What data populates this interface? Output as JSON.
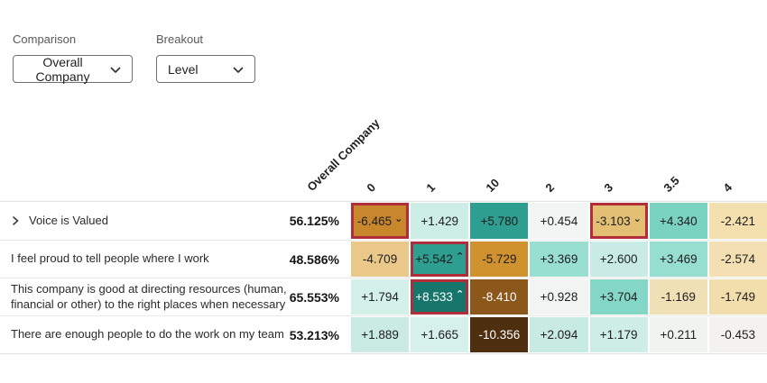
{
  "colors": {
    "highlight_border": "#b22d3a",
    "text_dark": "#1e1e1e",
    "text_light": "#ffffff"
  },
  "icons": {
    "up_marker": "⌃",
    "down_marker": "⌄"
  },
  "controls": {
    "comparison": {
      "label": "Comparison",
      "value": "Overall Company"
    },
    "breakout": {
      "label": "Breakout",
      "value": "Level"
    }
  },
  "table": {
    "corner_header": "Overall Company",
    "column_headers": [
      "0",
      "1",
      "10",
      "2",
      "3",
      "3.5",
      "4"
    ],
    "rows": [
      {
        "label": "Voice is Valued",
        "expandable": true,
        "score": "56.125%",
        "cells": [
          {
            "text": "-6.465",
            "bg": "#c8872d",
            "marker": "down",
            "outlined": true
          },
          {
            "text": "+1.429",
            "bg": "#cdeee7"
          },
          {
            "text": "+5.780",
            "bg": "#2d9e90"
          },
          {
            "text": "+0.454",
            "bg": "#f2f5f3"
          },
          {
            "text": "-3.103",
            "bg": "#e3bf74",
            "marker": "down",
            "outlined": true
          },
          {
            "text": "+4.340",
            "bg": "#7ad2c1"
          },
          {
            "text": "-2.421",
            "bg": "#f4dfae"
          }
        ]
      },
      {
        "label": "I feel proud to tell people where I work",
        "expandable": false,
        "score": "48.586%",
        "cells": [
          {
            "text": "-4.709",
            "bg": "#eac88a"
          },
          {
            "text": "+5.542",
            "bg": "#2d9e90",
            "marker": "up",
            "outlined": true
          },
          {
            "text": "-5.729",
            "bg": "#d0922f"
          },
          {
            "text": "+3.369",
            "bg": "#99dfd1"
          },
          {
            "text": "+2.600",
            "bg": "#c8ece5"
          },
          {
            "text": "+3.469",
            "bg": "#96ded0"
          },
          {
            "text": "-2.574",
            "bg": "#f3dfb2"
          }
        ]
      },
      {
        "label": "This company is good at directing resources (human, financial or other) to the right places when necessary",
        "expandable": false,
        "score": "65.553%",
        "cells": [
          {
            "text": "+1.794",
            "bg": "#d3f0e9"
          },
          {
            "text": "+8.533",
            "bg": "#17766b",
            "fg": "#ffffff",
            "marker": "up",
            "outlined": true
          },
          {
            "text": "-8.410",
            "bg": "#8c571b",
            "fg": "#ffffff"
          },
          {
            "text": "+0.928",
            "bg": "#f1f4f2"
          },
          {
            "text": "+3.704",
            "bg": "#84d7c6"
          },
          {
            "text": "-1.169",
            "bg": "#f0e0b6"
          },
          {
            "text": "-1.749",
            "bg": "#f2ddad"
          }
        ]
      },
      {
        "label": "There are enough people to do the work on my team",
        "expandable": false,
        "score": "53.213%",
        "cells": [
          {
            "text": "+1.889",
            "bg": "#c9ebe3"
          },
          {
            "text": "+1.665",
            "bg": "#d6f1eb"
          },
          {
            "text": "-10.356",
            "bg": "#4e2f10",
            "fg": "#ffffff"
          },
          {
            "text": "+2.094",
            "bg": "#c7eae2"
          },
          {
            "text": "+1.179",
            "bg": "#cdede6"
          },
          {
            "text": "+0.211",
            "bg": "#f1f3f1"
          },
          {
            "text": "-0.453",
            "bg": "#f3f2ee"
          }
        ]
      }
    ]
  }
}
